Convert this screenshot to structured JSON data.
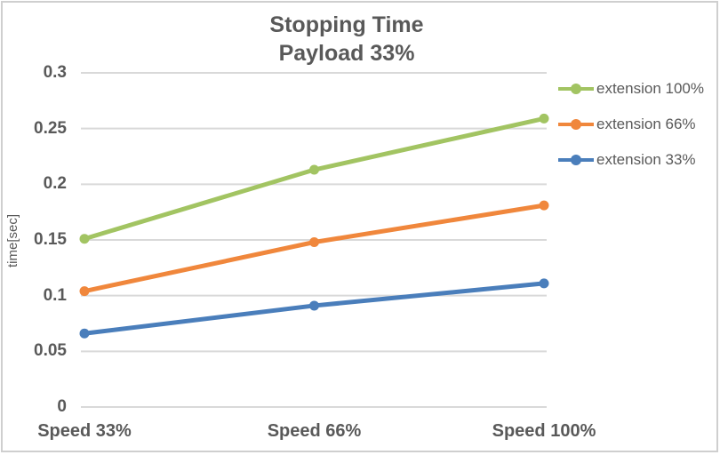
{
  "chart_data": {
    "type": "line",
    "title": "Stopping Time",
    "subtitle": "Payload 33%",
    "categories": [
      "Speed 33%",
      "Speed 66%",
      "Speed 100%"
    ],
    "series": [
      {
        "name": "extension 100%",
        "color": "#a2c462",
        "values": [
          0.151,
          0.213,
          0.259
        ]
      },
      {
        "name": "extension 66%",
        "color": "#f0873c",
        "values": [
          0.104,
          0.148,
          0.181
        ]
      },
      {
        "name": "extension 33%",
        "color": "#4a7ebb",
        "values": [
          0.066,
          0.091,
          0.111
        ]
      }
    ],
    "xlabel": "",
    "ylabel": "time[sec]",
    "ylim": [
      0,
      0.3
    ],
    "yticks": [
      0,
      0.05,
      0.1,
      0.15,
      0.2,
      0.25,
      0.3
    ],
    "ytick_labels": [
      "0",
      "0.05",
      "0.1",
      "0.15",
      "0.2",
      "0.25",
      "0.3"
    ],
    "grid": true,
    "legend_position": "right"
  },
  "colors": {
    "text": "#595959",
    "gridline": "#d9d9d9",
    "frame_border": "#cfcfcf",
    "background": "#ffffff"
  }
}
